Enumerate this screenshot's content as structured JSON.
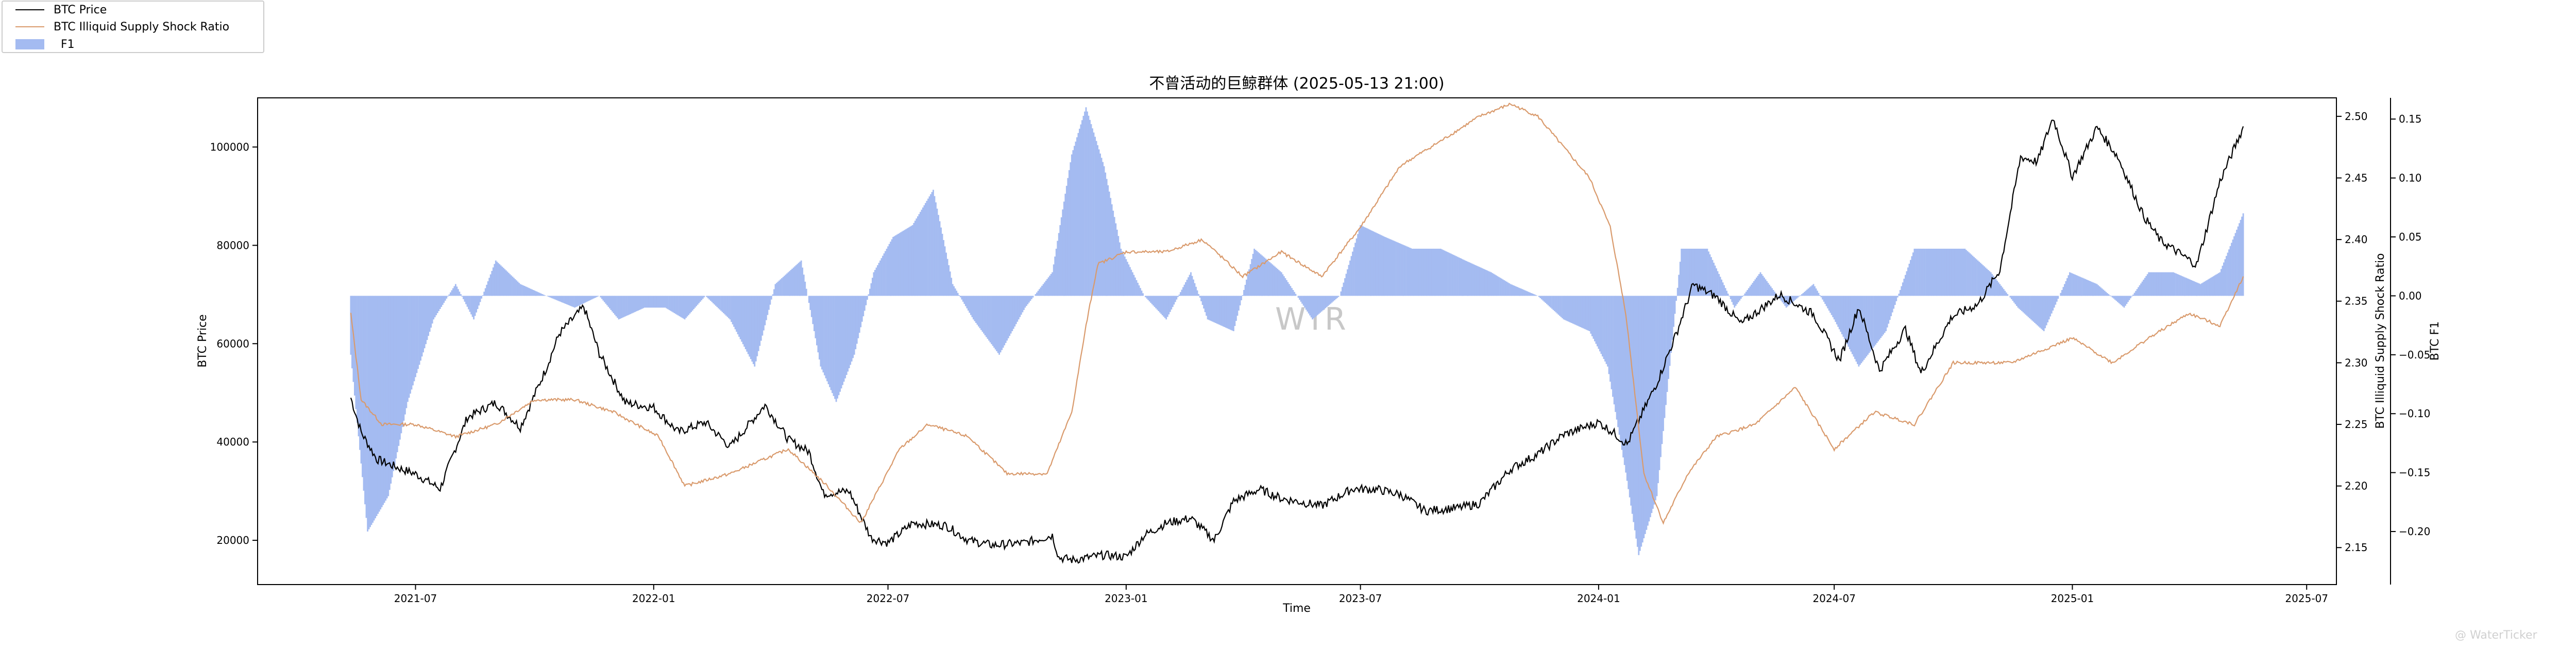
{
  "chart_data": {
    "type": "line",
    "title": "不曾活动的巨鲸群体 (2025-05-13 21:00)",
    "xlabel": "Time",
    "x_ticks": [
      "2021-07",
      "2022-01",
      "2022-07",
      "2023-01",
      "2023-07",
      "2024-01",
      "2024-07",
      "2025-01",
      "2025-07"
    ],
    "xlim": [
      "2021-03-01",
      "2025-07-24"
    ],
    "grid": false,
    "legend_position": "top-left",
    "watermark": "WTR",
    "credit": "@ WaterTicker",
    "axes": {
      "left": {
        "label": "BTC Price",
        "ylim": [
          11000,
          110000
        ],
        "ticks": [
          20000,
          40000,
          60000,
          80000,
          100000
        ],
        "tick_labels": [
          "20000",
          "40000",
          "60000",
          "80000",
          "100000"
        ]
      },
      "right1": {
        "label": "BTC Illiquid Supply Shock Ratio",
        "ylim": [
          2.12,
          2.515
        ],
        "ticks": [
          2.15,
          2.2,
          2.25,
          2.3,
          2.35,
          2.4,
          2.45,
          2.5
        ],
        "tick_labels": [
          "2.15",
          "2.20",
          "2.25",
          "2.30",
          "2.35",
          "2.40",
          "2.45",
          "2.50"
        ]
      },
      "right2": {
        "label": "BTC F1",
        "ylim": [
          -0.245,
          0.168
        ],
        "ticks": [
          -0.2,
          -0.15,
          -0.1,
          -0.05,
          0.0,
          0.05,
          0.1,
          0.15
        ],
        "tick_labels": [
          "−0.20",
          "−0.15",
          "−0.10",
          "−0.05",
          "0.00",
          "0.05",
          "0.10",
          "0.15"
        ]
      }
    },
    "series": [
      {
        "name": "BTC Price",
        "axis": "left",
        "kind": "line",
        "color": "#000000",
        "x": [
          "2021-05-12",
          "2021-05-20",
          "2021-06-01",
          "2021-06-20",
          "2021-07-01",
          "2021-07-20",
          "2021-08-10",
          "2021-09-01",
          "2021-09-20",
          "2021-10-10",
          "2021-10-20",
          "2021-11-08",
          "2021-11-20",
          "2021-12-10",
          "2022-01-01",
          "2022-01-20",
          "2022-02-10",
          "2022-03-01",
          "2022-03-28",
          "2022-04-15",
          "2022-05-01",
          "2022-05-12",
          "2022-06-01",
          "2022-06-18",
          "2022-07-01",
          "2022-07-20",
          "2022-08-15",
          "2022-09-01",
          "2022-09-20",
          "2022-10-15",
          "2022-11-05",
          "2022-11-10",
          "2022-11-21",
          "2022-12-15",
          "2023-01-01",
          "2023-01-15",
          "2023-02-01",
          "2023-02-20",
          "2023-03-10",
          "2023-03-25",
          "2023-04-14",
          "2023-05-01",
          "2023-06-01",
          "2023-06-25",
          "2023-07-15",
          "2023-08-01",
          "2023-08-20",
          "2023-09-15",
          "2023-10-01",
          "2023-10-25",
          "2023-11-15",
          "2023-12-05",
          "2024-01-01",
          "2024-01-12",
          "2024-01-23",
          "2024-02-15",
          "2024-03-01",
          "2024-03-14",
          "2024-04-01",
          "2024-04-20",
          "2024-05-20",
          "2024-06-15",
          "2024-07-05",
          "2024-07-20",
          "2024-08-05",
          "2024-08-25",
          "2024-09-06",
          "2024-09-30",
          "2024-10-20",
          "2024-11-06",
          "2024-11-22",
          "2024-12-05",
          "2024-12-17",
          "2025-01-01",
          "2025-01-20",
          "2025-02-05",
          "2025-02-25",
          "2025-03-10",
          "2025-04-07",
          "2025-04-25",
          "2025-05-13"
        ],
        "y": [
          49000,
          42000,
          36500,
          34500,
          33500,
          30500,
          45000,
          48000,
          43000,
          55000,
          62000,
          67500,
          58000,
          48000,
          47000,
          42000,
          44000,
          39000,
          47500,
          40500,
          38000,
          29500,
          30000,
          20500,
          19500,
          23500,
          23000,
          20000,
          19000,
          19500,
          21000,
          16500,
          16000,
          17000,
          16600,
          21000,
          23500,
          24500,
          20000,
          28000,
          30400,
          28500,
          27000,
          30500,
          30300,
          29300,
          26000,
          26600,
          27500,
          34500,
          37500,
          41500,
          44000,
          42000,
          39500,
          52000,
          62000,
          72000,
          69500,
          64000,
          70000,
          66000,
          56500,
          67500,
          54500,
          63000,
          54000,
          65500,
          68000,
          75000,
          98000,
          97000,
          106000,
          94000,
          104000,
          98000,
          86000,
          81000,
          76000,
          93000,
          104000
        ]
      },
      {
        "name": "BTC Illiquid Supply Shock Ratio",
        "axis": "right1",
        "kind": "line",
        "color": "#d99a6c",
        "x": [
          "2021-05-12",
          "2021-05-20",
          "2021-06-05",
          "2021-07-01",
          "2021-08-01",
          "2021-09-01",
          "2021-10-01",
          "2021-11-01",
          "2021-12-01",
          "2022-01-05",
          "2022-01-25",
          "2022-03-01",
          "2022-04-15",
          "2022-05-15",
          "2022-06-10",
          "2022-06-25",
          "2022-07-10",
          "2022-08-01",
          "2022-09-01",
          "2022-10-01",
          "2022-11-01",
          "2022-11-20",
          "2022-12-01",
          "2022-12-10",
          "2023-01-01",
          "2023-02-01",
          "2023-03-01",
          "2023-04-01",
          "2023-05-01",
          "2023-06-01",
          "2023-07-01",
          "2023-08-01",
          "2023-09-01",
          "2023-10-01",
          "2023-10-25",
          "2023-11-15",
          "2023-12-01",
          "2023-12-25",
          "2024-01-10",
          "2024-01-22",
          "2024-02-05",
          "2024-02-20",
          "2024-03-10",
          "2024-04-01",
          "2024-05-01",
          "2024-06-01",
          "2024-07-01",
          "2024-08-01",
          "2024-09-01",
          "2024-10-01",
          "2024-11-15",
          "2025-01-01",
          "2025-02-01",
          "2025-03-01",
          "2025-04-01",
          "2025-04-25",
          "2025-05-13"
        ],
        "y": [
          2.34,
          2.27,
          2.25,
          2.25,
          2.24,
          2.25,
          2.27,
          2.27,
          2.26,
          2.24,
          2.2,
          2.21,
          2.23,
          2.2,
          2.17,
          2.2,
          2.23,
          2.25,
          2.24,
          2.21,
          2.21,
          2.26,
          2.33,
          2.38,
          2.39,
          2.39,
          2.4,
          2.37,
          2.39,
          2.37,
          2.41,
          2.46,
          2.48,
          2.5,
          2.51,
          2.5,
          2.48,
          2.45,
          2.41,
          2.34,
          2.21,
          2.17,
          2.21,
          2.24,
          2.25,
          2.28,
          2.23,
          2.26,
          2.25,
          2.3,
          2.3,
          2.32,
          2.3,
          2.32,
          2.34,
          2.33,
          2.37
        ]
      },
      {
        "name": "F1",
        "axis": "right2",
        "kind": "bar",
        "color": "#a4bbf1",
        "x": [
          "2021-05-12",
          "2021-05-25",
          "2021-06-10",
          "2021-06-25",
          "2021-07-15",
          "2021-08-01",
          "2021-08-15",
          "2021-09-01",
          "2021-09-20",
          "2021-10-10",
          "2021-11-01",
          "2021-11-20",
          "2021-12-05",
          "2021-12-25",
          "2022-01-10",
          "2022-01-25",
          "2022-02-10",
          "2022-03-01",
          "2022-03-20",
          "2022-04-05",
          "2022-04-25",
          "2022-05-10",
          "2022-05-22",
          "2022-06-05",
          "2022-06-20",
          "2022-07-05",
          "2022-07-20",
          "2022-08-05",
          "2022-08-20",
          "2022-09-05",
          "2022-09-25",
          "2022-10-15",
          "2022-11-05",
          "2022-11-20",
          "2022-12-01",
          "2022-12-15",
          "2022-12-28",
          "2023-01-15",
          "2023-02-01",
          "2023-02-20",
          "2023-03-05",
          "2023-03-25",
          "2023-04-10",
          "2023-05-01",
          "2023-05-25",
          "2023-06-15",
          "2023-07-01",
          "2023-07-20",
          "2023-08-10",
          "2023-09-01",
          "2023-09-20",
          "2023-10-10",
          "2023-10-25",
          "2023-11-15",
          "2023-12-05",
          "2023-12-25",
          "2024-01-08",
          "2024-01-22",
          "2024-02-01",
          "2024-02-15",
          "2024-03-05",
          "2024-03-25",
          "2024-04-15",
          "2024-05-05",
          "2024-05-25",
          "2024-06-15",
          "2024-07-01",
          "2024-07-20",
          "2024-08-10",
          "2024-09-01",
          "2024-09-20",
          "2024-10-10",
          "2024-10-30",
          "2024-11-20",
          "2024-12-10",
          "2024-12-30",
          "2025-01-20",
          "2025-02-10",
          "2025-03-01",
          "2025-03-20",
          "2025-04-10",
          "2025-04-25",
          "2025-05-13"
        ],
        "y": [
          -0.05,
          -0.2,
          -0.17,
          -0.09,
          -0.02,
          0.01,
          -0.02,
          0.03,
          0.01,
          0.0,
          -0.01,
          0.0,
          -0.02,
          -0.01,
          -0.01,
          -0.02,
          0.0,
          -0.02,
          -0.06,
          0.01,
          0.03,
          -0.06,
          -0.09,
          -0.05,
          0.02,
          0.05,
          0.06,
          0.09,
          0.01,
          -0.02,
          -0.05,
          -0.01,
          0.02,
          0.12,
          0.16,
          0.11,
          0.04,
          0.0,
          -0.02,
          0.02,
          -0.02,
          -0.03,
          0.04,
          0.02,
          -0.02,
          0.0,
          0.06,
          0.05,
          0.04,
          0.04,
          0.03,
          0.02,
          0.01,
          0.0,
          -0.02,
          -0.03,
          -0.06,
          -0.15,
          -0.22,
          -0.17,
          0.04,
          0.04,
          -0.01,
          0.02,
          -0.01,
          0.01,
          -0.02,
          -0.06,
          -0.03,
          0.04,
          0.04,
          0.04,
          0.02,
          -0.01,
          -0.03,
          0.02,
          0.01,
          -0.01,
          0.02,
          0.02,
          0.01,
          0.02,
          0.07
        ]
      }
    ]
  }
}
